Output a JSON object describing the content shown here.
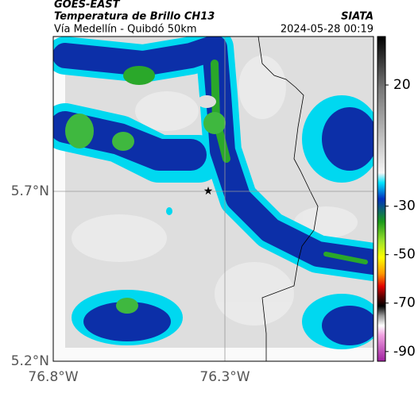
{
  "header": {
    "satellite": "GOES-EAST",
    "title": "Temperatura de Brillo CH13",
    "subtitle": "Vía Medellín - Quibdó 50km",
    "source": "SIATA",
    "timestamp": "2024-05-28 00:19"
  },
  "axes": {
    "lat_labels": [
      "5.7°N",
      "5.2°N"
    ],
    "lon_labels": [
      "76.8°W",
      "76.3°W"
    ]
  },
  "colorbar": {
    "ticks": [
      20,
      -30,
      -50,
      -70,
      -90
    ]
  }
}
